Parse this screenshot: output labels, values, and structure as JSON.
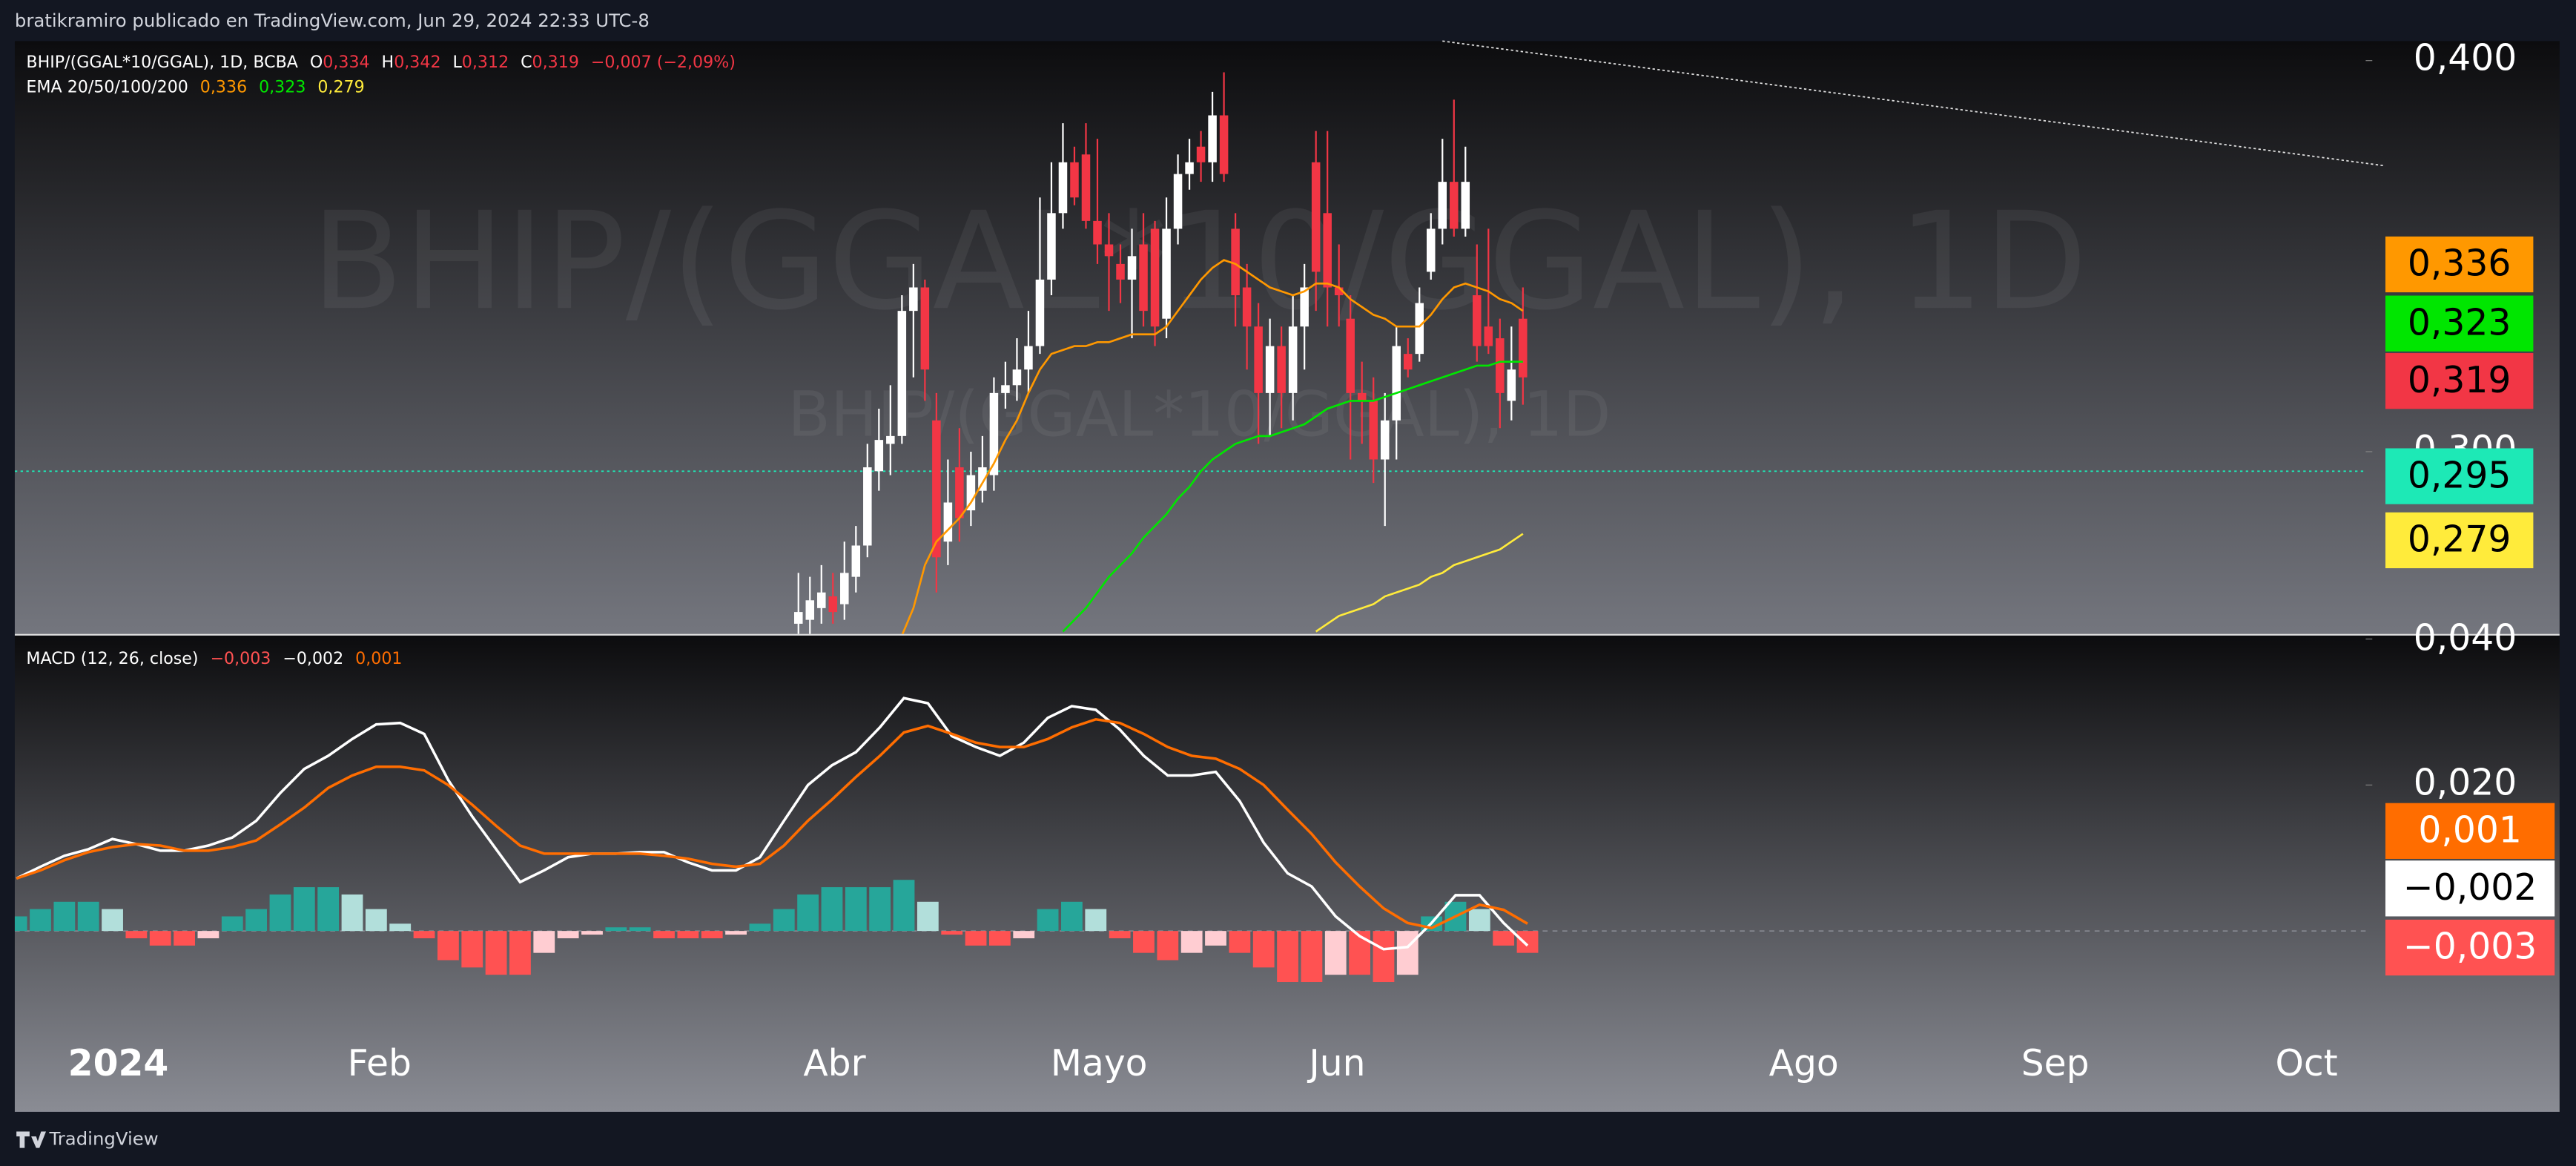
{
  "header": {
    "text": "bratikramiro publicado en TradingView.com, Jun 29, 2024 22:33 UTC-8"
  },
  "footer": {
    "brand": "TradingView"
  },
  "chart_data": [
    {
      "type": "candlestick",
      "title": "BHIP/(GGAL*10/GGAL), 1D",
      "legend": {
        "symbol": "BHIP/(GGAL*10/GGAL), 1D, BCBA",
        "ohlc": [
          {
            "label": "O",
            "value": "0,334"
          },
          {
            "label": "H",
            "value": "0,342"
          },
          {
            "label": "L",
            "value": "0,312"
          },
          {
            "label": "C",
            "value": "0,319"
          }
        ],
        "change": "−0,007 (−2,09%)",
        "indicator": "EMA 20/50/100/200"
      },
      "up_color": "#ffffff",
      "down_color": "#f23645",
      "open": [
        0.256,
        0.257,
        0.26,
        0.263,
        0.261,
        0.268,
        0.276,
        0.295,
        0.302,
        0.304,
        0.336,
        0.342,
        0.308,
        0.277,
        0.296,
        0.285,
        0.29,
        0.294,
        0.315,
        0.317,
        0.321,
        0.327,
        0.344,
        0.361,
        0.374,
        0.376,
        0.359,
        0.353,
        0.348,
        0.344,
        0.353,
        0.357,
        0.334,
        0.357,
        0.371,
        0.378,
        0.374,
        0.386,
        0.357,
        0.342,
        0.332,
        0.315,
        0.327,
        0.315,
        0.332,
        0.374,
        0.361,
        0.342,
        0.334,
        0.315,
        0.313,
        0.298,
        0.308,
        0.325,
        0.325,
        0.346,
        0.357,
        0.369,
        0.357,
        0.34,
        0.332,
        0.329,
        0.313,
        0.334
      ],
      "high": [
        0.269,
        0.268,
        0.271,
        0.269,
        0.277,
        0.281,
        0.302,
        0.311,
        0.317,
        0.34,
        0.348,
        0.344,
        0.315,
        0.298,
        0.306,
        0.3,
        0.304,
        0.319,
        0.323,
        0.329,
        0.336,
        0.365,
        0.374,
        0.384,
        0.378,
        0.384,
        0.38,
        0.361,
        0.353,
        0.357,
        0.361,
        0.359,
        0.365,
        0.376,
        0.38,
        0.382,
        0.392,
        0.397,
        0.361,
        0.348,
        0.338,
        0.334,
        0.332,
        0.34,
        0.348,
        0.382,
        0.382,
        0.353,
        0.34,
        0.323,
        0.319,
        0.315,
        0.332,
        0.329,
        0.342,
        0.361,
        0.38,
        0.39,
        0.378,
        0.353,
        0.357,
        0.334,
        0.332,
        0.342
      ],
      "low": [
        0.253,
        0.253,
        0.256,
        0.256,
        0.257,
        0.264,
        0.273,
        0.29,
        0.294,
        0.302,
        0.319,
        0.313,
        0.264,
        0.271,
        0.277,
        0.281,
        0.287,
        0.29,
        0.311,
        0.313,
        0.315,
        0.325,
        0.34,
        0.357,
        0.363,
        0.357,
        0.348,
        0.336,
        0.338,
        0.329,
        0.332,
        0.327,
        0.329,
        0.353,
        0.367,
        0.369,
        0.369,
        0.369,
        0.332,
        0.321,
        0.302,
        0.304,
        0.306,
        0.308,
        0.321,
        0.336,
        0.332,
        0.332,
        0.298,
        0.302,
        0.292,
        0.281,
        0.298,
        0.319,
        0.323,
        0.344,
        0.353,
        0.355,
        0.355,
        0.323,
        0.325,
        0.306,
        0.308,
        0.312
      ],
      "close": [
        0.259,
        0.262,
        0.264,
        0.259,
        0.269,
        0.276,
        0.296,
        0.303,
        0.304,
        0.336,
        0.342,
        0.321,
        0.273,
        0.287,
        0.283,
        0.294,
        0.296,
        0.315,
        0.317,
        0.321,
        0.327,
        0.344,
        0.361,
        0.374,
        0.365,
        0.359,
        0.353,
        0.35,
        0.344,
        0.35,
        0.336,
        0.332,
        0.357,
        0.371,
        0.374,
        0.374,
        0.386,
        0.371,
        0.34,
        0.332,
        0.315,
        0.327,
        0.315,
        0.332,
        0.342,
        0.346,
        0.342,
        0.34,
        0.315,
        0.313,
        0.298,
        0.308,
        0.327,
        0.321,
        0.338,
        0.357,
        0.369,
        0.357,
        0.369,
        0.327,
        0.327,
        0.315,
        0.321,
        0.319
      ],
      "series": [
        {
          "color": "#ff9800",
          "value_label": "0,336",
          "values": [
            null,
            null,
            null,
            null,
            null,
            null,
            null,
            null,
            null,
            0.253,
            0.26,
            0.271,
            0.277,
            0.28,
            0.283,
            0.287,
            0.292,
            0.297,
            0.303,
            0.308,
            0.315,
            0.321,
            0.325,
            0.326,
            0.327,
            0.327,
            0.328,
            0.328,
            0.329,
            0.33,
            0.33,
            0.33,
            0.332,
            0.336,
            0.34,
            0.344,
            0.347,
            0.349,
            0.348,
            0.346,
            0.344,
            0.342,
            0.341,
            0.34,
            0.341,
            0.343,
            0.343,
            0.342,
            0.339,
            0.337,
            0.335,
            0.334,
            0.332,
            0.332,
            0.332,
            0.335,
            0.339,
            0.342,
            0.343,
            0.342,
            0.341,
            0.339,
            0.338,
            0.336
          ]
        },
        {
          "color": "#00e600",
          "value_label": "0,323",
          "values": [
            null,
            null,
            null,
            null,
            null,
            null,
            null,
            null,
            null,
            null,
            null,
            null,
            null,
            null,
            null,
            null,
            null,
            null,
            null,
            null,
            null,
            null,
            null,
            0.254,
            0.257,
            0.26,
            0.264,
            0.268,
            0.271,
            0.274,
            0.278,
            0.281,
            0.284,
            0.288,
            0.291,
            0.295,
            0.298,
            0.3,
            0.302,
            0.303,
            0.304,
            0.304,
            0.305,
            0.306,
            0.307,
            0.309,
            0.311,
            0.312,
            0.313,
            0.313,
            0.313,
            0.314,
            0.315,
            0.316,
            0.317,
            0.318,
            0.319,
            0.32,
            0.321,
            0.322,
            0.322,
            0.323,
            0.323,
            0.323
          ]
        },
        {
          "color": "#ffeb3b",
          "value_label": "0,279",
          "values": [
            null,
            null,
            null,
            null,
            null,
            null,
            null,
            null,
            null,
            null,
            null,
            null,
            null,
            null,
            null,
            null,
            null,
            null,
            null,
            null,
            null,
            null,
            null,
            null,
            null,
            null,
            null,
            null,
            null,
            null,
            null,
            null,
            null,
            null,
            null,
            null,
            null,
            null,
            null,
            null,
            null,
            null,
            null,
            null,
            null,
            0.254,
            0.256,
            0.258,
            0.259,
            0.26,
            0.261,
            0.263,
            0.264,
            0.265,
            0.266,
            0.268,
            0.269,
            0.271,
            0.272,
            0.273,
            0.274,
            0.275,
            0.277,
            0.279
          ]
        }
      ],
      "hline": {
        "value": 0.295,
        "label": "0,295",
        "color": "#1de9b6"
      },
      "ylim": [
        0.2534,
        0.405
      ],
      "yticks": [
        {
          "value": 0.4,
          "label": "0,400"
        },
        {
          "value": 0.3,
          "label": "0,300"
        }
      ],
      "time_labels": [
        "2024",
        "Feb",
        "Abr",
        "Mayo",
        "Jun",
        "Ago",
        "Sep",
        "Oct"
      ]
    },
    {
      "type": "macd",
      "legend": {
        "label": "MACD (12, 26, close)"
      },
      "histogram": [
        0.002,
        0.003,
        0.004,
        0.004,
        0.003,
        -0.001,
        -0.002,
        -0.002,
        -0.001,
        0.002,
        0.003,
        0.005,
        0.006,
        0.006,
        0.005,
        0.003,
        0.001,
        -0.001,
        -0.004,
        -0.005,
        -0.006,
        -0.006,
        -0.003,
        -0.001,
        -0.0005,
        0.0005,
        0.0005,
        -0.001,
        -0.001,
        -0.001,
        -0.0005,
        0.001,
        0.003,
        0.005,
        0.006,
        0.006,
        0.006,
        0.007,
        0.004,
        -0.0005,
        -0.002,
        -0.002,
        -0.001,
        0.003,
        0.004,
        0.003,
        -0.001,
        -0.003,
        -0.004,
        -0.003,
        -0.002,
        -0.003,
        -0.005,
        -0.007,
        -0.007,
        -0.006,
        -0.006,
        -0.007,
        -0.006,
        0.002,
        0.004,
        0.003,
        -0.002,
        -0.003
      ],
      "histogram_label": "−0,003",
      "histogram_colors": [
        "#26a69a",
        "#b2dfdb",
        "#ffcdd2",
        "#ff5252"
      ],
      "series": [
        {
          "color": "#ffffff",
          "value_label": "−0,002",
          "values": [
            0.0072,
            0.0088,
            0.0103,
            0.0112,
            0.0126,
            0.0119,
            0.011,
            0.011,
            0.0117,
            0.0128,
            0.0151,
            0.0189,
            0.0222,
            0.024,
            0.0263,
            0.0283,
            0.0285,
            0.027,
            0.0207,
            0.0157,
            0.0112,
            0.0067,
            0.0083,
            0.0101,
            0.0106,
            0.0106,
            0.0108,
            0.0108,
            0.0094,
            0.0083,
            0.0083,
            0.0101,
            0.0151,
            0.02,
            0.0227,
            0.0245,
            0.0279,
            0.0319,
            0.0312,
            0.0267,
            0.0252,
            0.024,
            0.0258,
            0.0292,
            0.0308,
            0.0303,
            0.0276,
            0.024,
            0.0213,
            0.0213,
            0.0218,
            0.0178,
            0.0121,
            0.0079,
            0.0061,
            0.002,
            -0.0007,
            -0.0025,
            -0.0022,
            0.0011,
            0.0049,
            0.0049,
            0.0011,
            -0.002
          ]
        },
        {
          "color": "#ff6d00",
          "value_label": "0,001",
          "values": [
            0.0072,
            0.0083,
            0.0097,
            0.0108,
            0.0115,
            0.0119,
            0.0117,
            0.011,
            0.011,
            0.0115,
            0.0124,
            0.0146,
            0.0169,
            0.0196,
            0.0213,
            0.0225,
            0.0225,
            0.022,
            0.02,
            0.0173,
            0.0144,
            0.0117,
            0.0106,
            0.0106,
            0.0106,
            0.0106,
            0.0106,
            0.0103,
            0.0099,
            0.0092,
            0.0088,
            0.0092,
            0.0117,
            0.0151,
            0.018,
            0.0211,
            0.024,
            0.0272,
            0.0281,
            0.027,
            0.0258,
            0.0252,
            0.0252,
            0.0263,
            0.0279,
            0.029,
            0.0285,
            0.027,
            0.0252,
            0.024,
            0.0236,
            0.0222,
            0.02,
            0.0166,
            0.0133,
            0.0094,
            0.0061,
            0.0031,
            0.0011,
            0.0004,
            0.002,
            0.0036,
            0.0029,
            0.001
          ]
        }
      ],
      "ylim": [
        -0.0142,
        0.0407
      ],
      "yticks": [
        {
          "value": 0.04,
          "label": "0,040"
        },
        {
          "value": 0.02,
          "label": "0,020"
        }
      ]
    }
  ]
}
